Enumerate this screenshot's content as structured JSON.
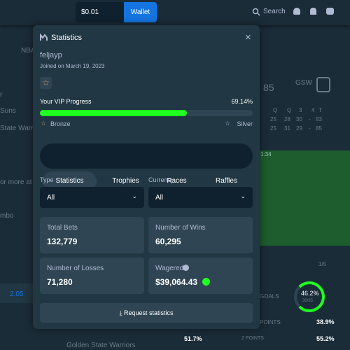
{
  "topbar": {
    "balance": "$0.01",
    "wallet": "Wallet",
    "search": "Search"
  },
  "background": {
    "left": [
      "NBA",
      "r",
      "Suns",
      "State Warriors",
      "or more at t",
      "mbo",
      "2.05"
    ],
    "scoreboard": {
      "home_score": "85",
      "team": "GSW",
      "time": "1:34",
      "header": [
        "Q",
        "Q",
        "3",
        "4",
        "T"
      ],
      "rows": [
        [
          "25",
          "28",
          "30",
          "-",
          "83"
        ],
        [
          "25",
          "31",
          "29",
          "-",
          "85"
        ]
      ]
    },
    "stats": {
      "page": "1/5",
      "ring": "46.2%",
      "ring_sub": "30/65",
      "goals": "GOALS",
      "points_label": "POINTS",
      "points_pct": "38.9%",
      "two_points": "2 POINTS",
      "left_pct": "51.7%",
      "right_pct": "55.2%"
    },
    "footer_team": "Golden State Warriors"
  },
  "modal": {
    "title": "Statistics",
    "username": "feljayp",
    "joined": "Joined on March 19, 2023",
    "vip": {
      "label": "Your VIP Progress",
      "progress": 69.14,
      "progress_label": "69.14%",
      "from": "Bronze",
      "to": "Silver"
    },
    "tabs": [
      "Statistics",
      "Trophies",
      "Races",
      "Raffles"
    ],
    "filters": [
      {
        "label": "Type",
        "value": "All"
      },
      {
        "label": "Currency",
        "value": "All"
      }
    ],
    "cards": [
      {
        "label": "Total Bets",
        "value": "132,779"
      },
      {
        "label": "Number of Wins",
        "value": "60,295"
      },
      {
        "label": "Number of Losses",
        "value": "71,280"
      },
      {
        "label": "Wagered",
        "value": "$39,064.43"
      }
    ],
    "button": "Request statistics"
  }
}
